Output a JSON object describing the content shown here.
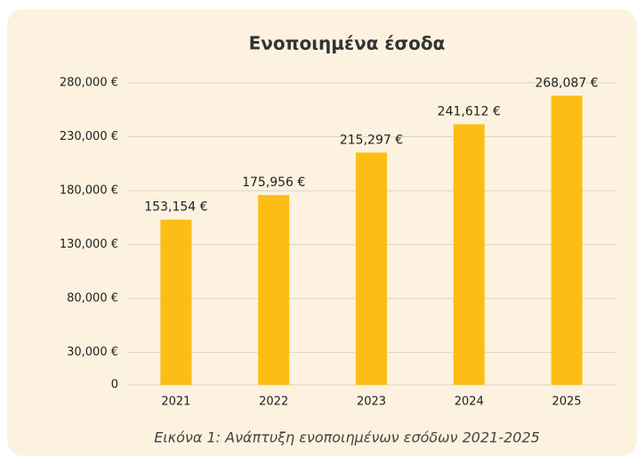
{
  "chart_data": {
    "type": "bar",
    "title": "Ενοποιημένα έσοδα",
    "caption": "Εικόνα 1: Ανάπτυξη ενοποιημένων εσόδων 2021-2025",
    "categories": [
      "2021",
      "2022",
      "2023",
      "2024",
      "2025"
    ],
    "values": [
      153154,
      175956,
      215297,
      241612,
      268087
    ],
    "value_labels": [
      "153,154 €",
      "175,956 €",
      "215,297 €",
      "241,612 €",
      "268,087 €"
    ],
    "color": "#fcbd14",
    "ylim": [
      0,
      280000
    ],
    "yticks": [
      0,
      {
        "value": 30000,
        "label": "30,000 €"
      },
      {
        "value": 80000,
        "label": "80,000 €"
      },
      {
        "value": 130000,
        "label": "130,000 €"
      },
      {
        "value": 180000,
        "label": "180,000 €"
      },
      {
        "value": 230000,
        "label": "230,000 €"
      },
      {
        "value": 280000,
        "label": "280,000 €"
      }
    ],
    "grid": true
  }
}
